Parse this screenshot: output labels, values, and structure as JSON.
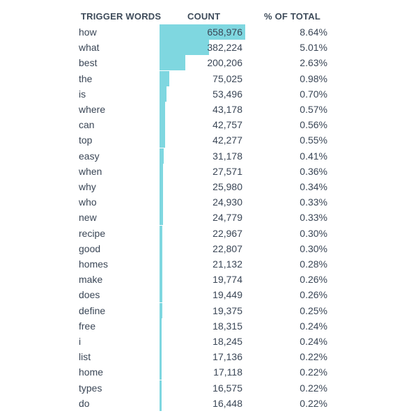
{
  "headers": {
    "word": "TRIGGER WORDS",
    "count": "COUNT",
    "pct": "% OF TOTAL"
  },
  "colors": {
    "bar": "#7fd7e0",
    "text": "#3a4656"
  },
  "chart_data": {
    "type": "bar",
    "orientation": "horizontal",
    "title": "",
    "xlabel": "",
    "ylabel": "",
    "categories": [
      "how",
      "what",
      "best",
      "the",
      "is",
      "where",
      "can",
      "top",
      "easy",
      "when",
      "why",
      "who",
      "new",
      "recipe",
      "good",
      "homes",
      "make",
      "does",
      "define",
      "free",
      "i",
      "list",
      "home",
      "types",
      "do"
    ],
    "values": [
      658976,
      382224,
      200206,
      75025,
      53496,
      43178,
      42757,
      42277,
      31178,
      27571,
      25980,
      24930,
      24779,
      22967,
      22807,
      21132,
      19774,
      19449,
      19375,
      18315,
      18245,
      17136,
      17118,
      16575,
      16448
    ],
    "count_labels": [
      "658,976",
      "382,224",
      "200,206",
      "75,025",
      "53,496",
      "43,178",
      "42,757",
      "42,277",
      "31,178",
      "27,571",
      "25,980",
      "24,930",
      "24,779",
      "22,967",
      "22,807",
      "21,132",
      "19,774",
      "19,449",
      "19,375",
      "18,315",
      "18,245",
      "17,136",
      "17,118",
      "16,575",
      "16,448"
    ],
    "pct_labels": [
      "8.64%",
      "5.01%",
      "2.63%",
      "0.98%",
      "0.70%",
      "0.57%",
      "0.56%",
      "0.55%",
      "0.41%",
      "0.36%",
      "0.34%",
      "0.33%",
      "0.33%",
      "0.30%",
      "0.30%",
      "0.28%",
      "0.26%",
      "0.26%",
      "0.25%",
      "0.24%",
      "0.24%",
      "0.22%",
      "0.22%",
      "0.22%",
      "0.22%"
    ]
  }
}
